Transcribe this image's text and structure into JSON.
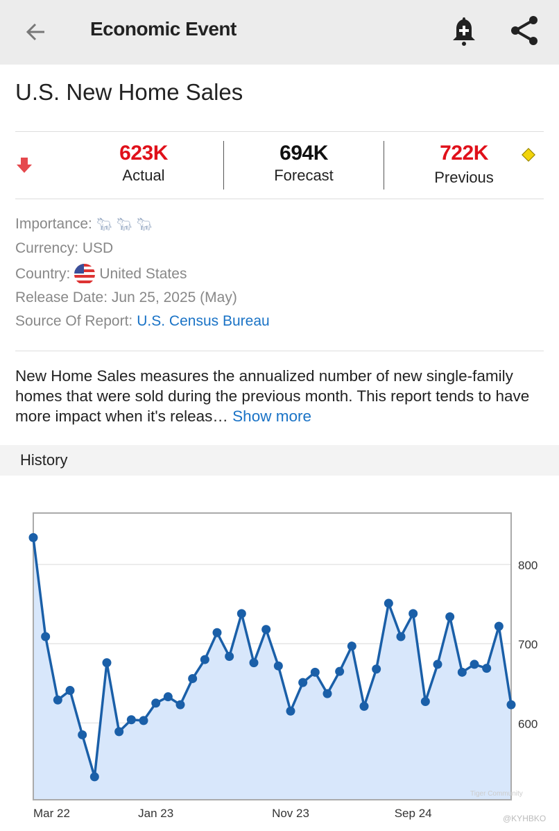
{
  "appbar": {
    "title": "Economic Event",
    "back_icon": "arrow-left-icon",
    "alert_icon": "bell-plus-icon",
    "share_icon": "share-icon"
  },
  "event": {
    "title": "U.S. New Home Sales"
  },
  "stats": {
    "trend_icon": "arrow-down-icon",
    "actual": {
      "value": "623K",
      "label": "Actual",
      "color": "#e0101a"
    },
    "forecast": {
      "value": "694K",
      "label": "Forecast",
      "color": "#111111"
    },
    "previous": {
      "value": "722K",
      "label": "Previous",
      "color": "#e0101a"
    },
    "revision_icon": "diamond-icon"
  },
  "info": {
    "importance_label": "Importance:",
    "importance_level": 3,
    "importance_icon": "bull-icon",
    "currency": "Currency: USD",
    "country_label": "Country:",
    "country": "United States",
    "country_icon": "us-flag-icon",
    "release": "Release Date: Jun 25, 2025 (May)",
    "source_label": "Source Of Report:",
    "source": "U.S. Census Bureau"
  },
  "description": {
    "text": "New Home Sales measures the annualized number of new single-family homes that were sold during the previous month. This report tends to have more impact when it's releas…",
    "more": "Show more"
  },
  "history": {
    "title": "History"
  },
  "chart_data": {
    "type": "area",
    "ylim": [
      503,
      865
    ],
    "y_ticks": [
      600,
      700,
      800
    ],
    "x_ticks": [
      {
        "index": 0,
        "label": "Mar 22"
      },
      {
        "index": 10,
        "label": "Jan 23"
      },
      {
        "index": 21,
        "label": "Nov 23"
      },
      {
        "index": 31,
        "label": "Sep 24"
      }
    ],
    "values": [
      834,
      709,
      629,
      641,
      585,
      532,
      676,
      589,
      604,
      603,
      625,
      633,
      623,
      656,
      680,
      714,
      684,
      738,
      676,
      718,
      672,
      615,
      651,
      664,
      637,
      665,
      697,
      621,
      668,
      751,
      709,
      738,
      627,
      674,
      734,
      664,
      674,
      669,
      722,
      623
    ],
    "grid": true,
    "line_color": "#1a5fa8",
    "fill_color": "#d8e7fb"
  },
  "watermark": {
    "brand": "Tiger Community",
    "handle": "@KYHBKO"
  }
}
